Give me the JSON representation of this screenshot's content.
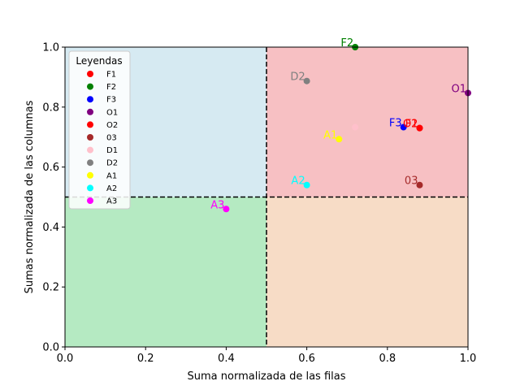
{
  "chart_data": {
    "type": "scatter",
    "xlabel": "Suma normalizada de las filas",
    "ylabel": "Sumas normalizada de las columnas",
    "xlim": [
      0,
      1
    ],
    "ylim": [
      0,
      1
    ],
    "x_ticks": [
      "0.0",
      "0.2",
      "0.4",
      "0.6",
      "0.8",
      "1.0"
    ],
    "y_ticks": [
      "0.0",
      "0.2",
      "0.4",
      "0.6",
      "0.8",
      "1.0"
    ],
    "threshold_x": 0.5,
    "threshold_y": 0.5,
    "quadrants": [
      {
        "quadrant": "top-left",
        "color": "#d6eaf2"
      },
      {
        "quadrant": "top-right",
        "color": "#f7c0c3"
      },
      {
        "quadrant": "bottom-left",
        "color": "#b5eac2"
      },
      {
        "quadrant": "bottom-right",
        "color": "#f7dcc6"
      }
    ],
    "legend": {
      "title": "Leyendas",
      "placement": "top-left"
    },
    "series": [
      {
        "name": "F1",
        "x": 0.88,
        "y": 0.73,
        "color": "#ff0000",
        "label_color": "#ff0000"
      },
      {
        "name": "F2",
        "x": 0.72,
        "y": 1.0,
        "color": "#008000",
        "label_color": "#008000"
      },
      {
        "name": "F3",
        "x": 0.84,
        "y": 0.733,
        "color": "#0000ff",
        "label_color": "#0000ff"
      },
      {
        "name": "O1",
        "x": 1.0,
        "y": 0.847,
        "color": "#800080",
        "label_color": "#800080"
      },
      {
        "name": "O2",
        "x": 0.88,
        "y": 0.73,
        "color": "#ff0000",
        "label_color": "#ff0000"
      },
      {
        "name": "03",
        "x": 0.88,
        "y": 0.54,
        "color": "#a52a2a",
        "label_color": "#a52a2a"
      },
      {
        "name": "D1",
        "x": 0.72,
        "y": 0.733,
        "color": "#ffc0cb",
        "label_color": "#ffc0cb"
      },
      {
        "name": "D2",
        "x": 0.6,
        "y": 0.887,
        "color": "#808080",
        "label_color": "#808080"
      },
      {
        "name": "A1",
        "x": 0.68,
        "y": 0.693,
        "color": "#ffff00",
        "label_color": "#ffff00"
      },
      {
        "name": "A2",
        "x": 0.6,
        "y": 0.54,
        "color": "#00ffff",
        "label_color": "#00ffff"
      },
      {
        "name": "A3",
        "x": 0.4,
        "y": 0.46,
        "color": "#ff00ff",
        "label_color": "#ff00ff"
      }
    ],
    "point_labels": [
      {
        "text": "F2",
        "series": "F2"
      },
      {
        "text": "D2",
        "series": "D2"
      },
      {
        "text": "O1",
        "series": "O1"
      },
      {
        "text": "F3",
        "series": "F3"
      },
      {
        "text": "O2",
        "series": "O2"
      },
      {
        "text": "F1",
        "series": "F1"
      },
      {
        "text": "A1",
        "series": "A1"
      },
      {
        "text": "A2",
        "series": "A2"
      },
      {
        "text": "03",
        "series": "03"
      },
      {
        "text": "A3",
        "series": "A3"
      }
    ]
  }
}
